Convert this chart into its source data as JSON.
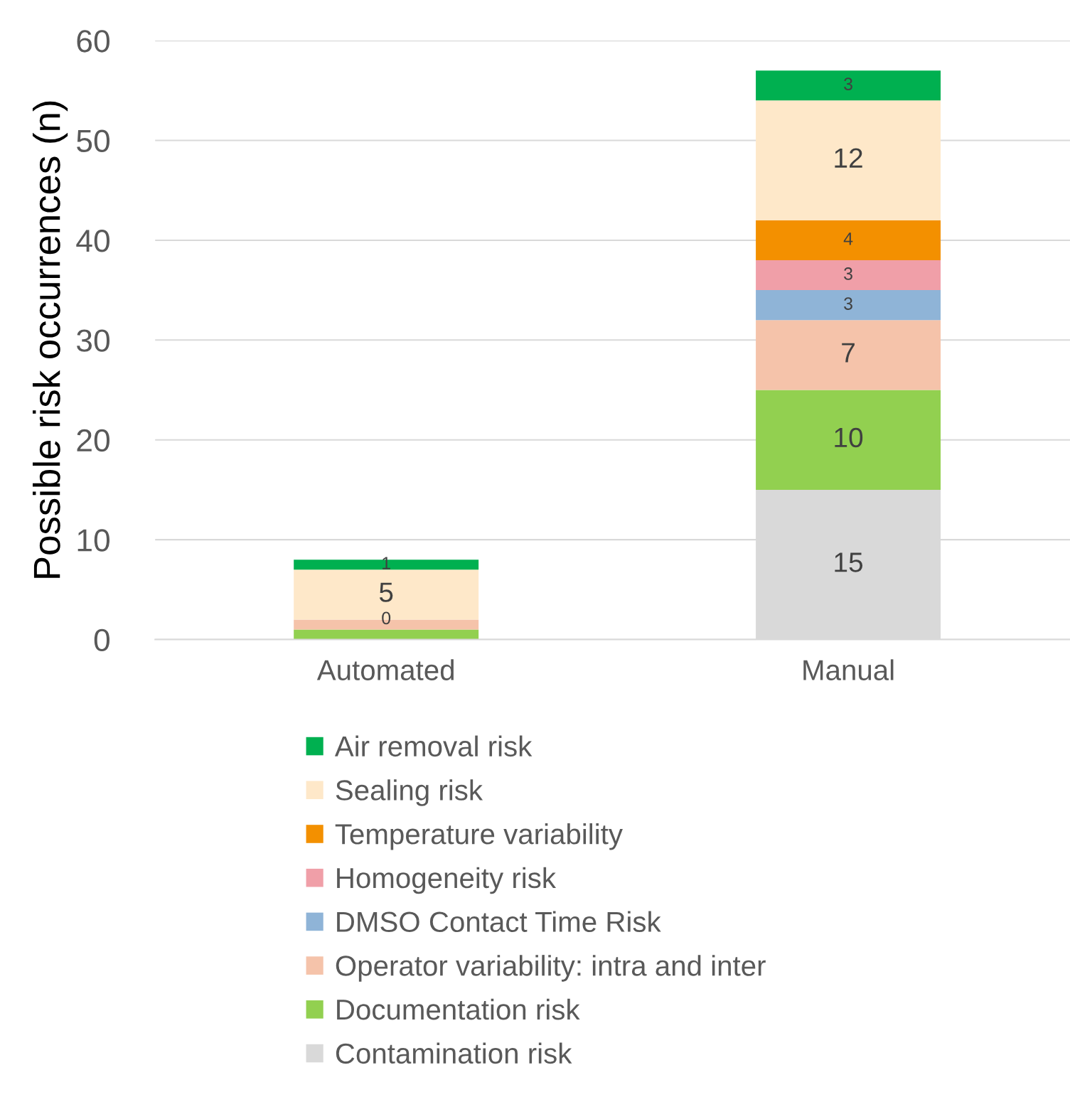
{
  "chart_data": {
    "type": "bar",
    "stacked": true,
    "ylabel": "Possible risk occurrences (n)",
    "categories": [
      "Automated",
      "Manual"
    ],
    "ylim": [
      0,
      60
    ],
    "yticks": [
      0,
      10,
      20,
      30,
      40,
      50,
      60
    ],
    "grid": "y",
    "legend": "bottom",
    "series": [
      {
        "name": "Contamination risk",
        "color": "#d9d9d9",
        "values": [
          0,
          15
        ],
        "value_labels": [
          null,
          "15"
        ]
      },
      {
        "name": "Documentation risk",
        "color": "#92d050",
        "values": [
          1,
          10
        ],
        "value_labels": [
          null,
          "10"
        ]
      },
      {
        "name": "Operator variability: intra and inter",
        "color": "#f5c3aa",
        "values": [
          1,
          7
        ],
        "value_labels": [
          null,
          "7"
        ]
      },
      {
        "name": "DMSO Contact Time Risk",
        "color": "#8fb4d7",
        "values": [
          0,
          3
        ],
        "value_labels": [
          "0",
          "3"
        ]
      },
      {
        "name": "Homogeneity risk",
        "color": "#f09fa8",
        "values": [
          0,
          3
        ],
        "value_labels": [
          null,
          "3"
        ]
      },
      {
        "name": "Temperature variability",
        "color": "#f39000",
        "values": [
          0,
          4
        ],
        "value_labels": [
          null,
          "4"
        ]
      },
      {
        "name": "Sealing risk",
        "color": "#fee8c9",
        "values": [
          5,
          12
        ],
        "value_labels": [
          "5",
          "12"
        ]
      },
      {
        "name": "Air removal risk",
        "color": "#00b050",
        "values": [
          1,
          3
        ],
        "value_labels": [
          "1",
          "3"
        ]
      }
    ]
  }
}
